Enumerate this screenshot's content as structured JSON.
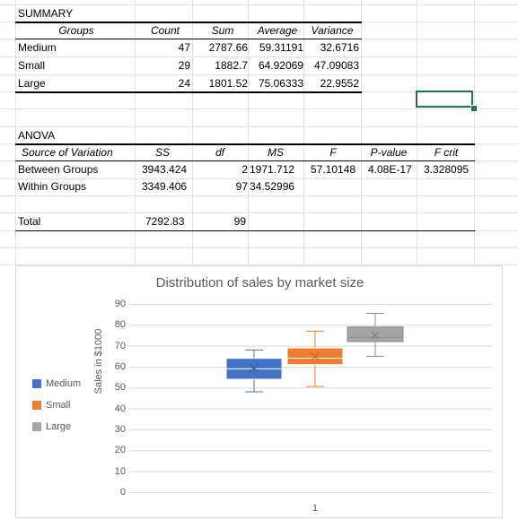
{
  "summary": {
    "title": "SUMMARY",
    "headers": [
      "Groups",
      "Count",
      "Sum",
      "Average",
      "Variance"
    ],
    "rows": [
      {
        "group": "Medium",
        "count": "47",
        "sum": "2787.66",
        "average": "59.31191",
        "variance": "32.6716"
      },
      {
        "group": "Small",
        "count": "29",
        "sum": "1882.7",
        "average": "64.92069",
        "variance": "47.09083"
      },
      {
        "group": "Large",
        "count": "24",
        "sum": "1801.52",
        "average": "75.06333",
        "variance": "22.9552"
      }
    ]
  },
  "anova": {
    "title": "ANOVA",
    "headers": [
      "Source of Variation",
      "SS",
      "df",
      "MS",
      "F",
      "P-value",
      "F crit"
    ],
    "between": {
      "label": "Between Groups",
      "ss": "3943.424",
      "df": "2",
      "ms": "1971.712",
      "f": "57.10148",
      "p": "4.08E-17",
      "fcrit": "3.328095"
    },
    "within": {
      "label": "Within Groups",
      "ss": "3349.406",
      "df": "97",
      "ms": "34.52996"
    },
    "total": {
      "label": "Total",
      "ss": "7292.83",
      "df": "99"
    }
  },
  "chart_data": {
    "type": "box",
    "title": "Distribution of sales by market size",
    "ylabel": "Sales in $1000",
    "categories": [
      "1"
    ],
    "ylim": [
      0,
      90
    ],
    "yticks": [
      "0",
      "10",
      "20",
      "30",
      "40",
      "50",
      "60",
      "70",
      "80",
      "90"
    ],
    "legend_position": "left",
    "series": [
      {
        "name": "Medium",
        "color": "#4472c4",
        "whisker_low": 48,
        "q1": 54,
        "median": 59,
        "q3": 64,
        "whisker_high": 68,
        "mean": 59.3
      },
      {
        "name": "Small",
        "color": "#ed7d31",
        "whisker_low": 50.5,
        "q1": 61,
        "median": 64,
        "q3": 69,
        "whisker_high": 77,
        "mean": 64.9
      },
      {
        "name": "Large",
        "color": "#a5a5a5",
        "whisker_low": 65,
        "q1": 72,
        "median": 74,
        "q3": 79,
        "whisker_high": 85.5,
        "mean": 75.1
      }
    ]
  }
}
